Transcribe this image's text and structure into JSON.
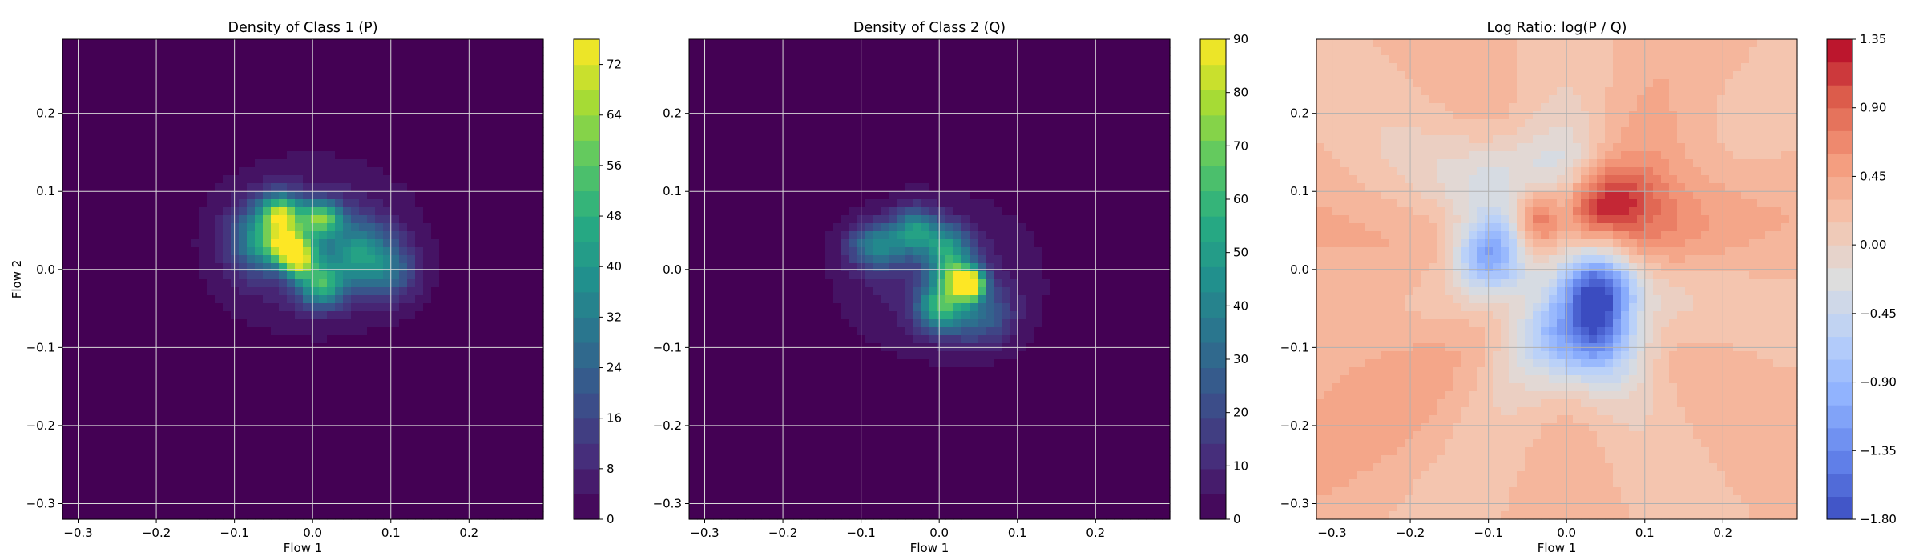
{
  "chart_data": [
    {
      "type": "heatmap",
      "title": "Density of Class 1 (P)",
      "xlabel": "Flow 1",
      "ylabel": "Flow 2",
      "xlim": [
        -0.32,
        0.295
      ],
      "ylim": [
        -0.32,
        0.295
      ],
      "xticks": [
        -0.3,
        -0.2,
        -0.1,
        0.0,
        0.1,
        0.2
      ],
      "yticks": [
        -0.3,
        -0.2,
        -0.1,
        0.0,
        0.1,
        0.2
      ],
      "grid": true,
      "colormap": "viridis",
      "clim": [
        0,
        76
      ],
      "colorbar_ticks": [
        0,
        8,
        16,
        24,
        32,
        40,
        48,
        56,
        64,
        72
      ],
      "density_peaks": [
        {
          "x": -0.04,
          "y": 0.07,
          "peak": 55,
          "sx": 0.018,
          "sy": 0.018
        },
        {
          "x": 0.01,
          "y": 0.065,
          "peak": 50,
          "sx": 0.018,
          "sy": 0.015
        },
        {
          "x": -0.03,
          "y": 0.03,
          "peak": 55,
          "sx": 0.02,
          "sy": 0.015
        },
        {
          "x": -0.02,
          "y": 0.01,
          "peak": 45,
          "sx": 0.015,
          "sy": 0.015
        },
        {
          "x": 0.01,
          "y": -0.02,
          "peak": 40,
          "sx": 0.02,
          "sy": 0.02
        },
        {
          "x": 0.06,
          "y": 0.02,
          "peak": 30,
          "sx": 0.03,
          "sy": 0.03
        },
        {
          "x": -0.07,
          "y": 0.04,
          "peak": 30,
          "sx": 0.025,
          "sy": 0.03
        },
        {
          "x": 0.1,
          "y": -0.005,
          "peak": 18,
          "sx": 0.025,
          "sy": 0.025
        },
        {
          "x": 0.0,
          "y": 0.03,
          "peak": 14,
          "sx": 0.075,
          "sy": 0.06
        }
      ]
    },
    {
      "type": "heatmap",
      "title": "Density of Class 2 (Q)",
      "xlabel": "Flow 1",
      "ylabel": "",
      "xlim": [
        -0.32,
        0.295
      ],
      "ylim": [
        -0.32,
        0.295
      ],
      "xticks": [
        -0.3,
        -0.2,
        -0.1,
        0.0,
        0.1,
        0.2
      ],
      "yticks": [
        -0.3,
        -0.2,
        -0.1,
        0.0,
        0.1,
        0.2
      ],
      "grid": true,
      "colormap": "viridis",
      "clim": [
        0,
        90
      ],
      "colorbar_ticks": [
        0,
        10,
        20,
        30,
        40,
        50,
        60,
        70,
        80,
        90
      ],
      "density_peaks": [
        {
          "x": -0.08,
          "y": 0.03,
          "peak": 38,
          "sx": 0.025,
          "sy": 0.02
        },
        {
          "x": -0.03,
          "y": 0.05,
          "peak": 40,
          "sx": 0.02,
          "sy": 0.02
        },
        {
          "x": 0.01,
          "y": 0.03,
          "peak": 35,
          "sx": 0.02,
          "sy": 0.02
        },
        {
          "x": 0.04,
          "y": -0.02,
          "peak": 85,
          "sx": 0.012,
          "sy": 0.012
        },
        {
          "x": 0.02,
          "y": -0.01,
          "peak": 50,
          "sx": 0.02,
          "sy": 0.02
        },
        {
          "x": 0.0,
          "y": -0.05,
          "peak": 45,
          "sx": 0.02,
          "sy": 0.02
        },
        {
          "x": 0.05,
          "y": -0.06,
          "peak": 25,
          "sx": 0.03,
          "sy": 0.025
        },
        {
          "x": 0.0,
          "y": -0.01,
          "peak": 12,
          "sx": 0.075,
          "sy": 0.06
        }
      ]
    },
    {
      "type": "heatmap",
      "title": "Log Ratio: log(P / Q)",
      "xlabel": "Flow 1",
      "ylabel": "",
      "xlim": [
        -0.32,
        0.295
      ],
      "ylim": [
        -0.32,
        0.295
      ],
      "xticks": [
        -0.3,
        -0.2,
        -0.1,
        0.0,
        0.1,
        0.2
      ],
      "yticks": [
        -0.3,
        -0.2,
        -0.1,
        0.0,
        0.1,
        0.2
      ],
      "grid": true,
      "colormap": "coolwarm",
      "clim": [
        -1.8,
        1.35
      ],
      "colorbar_ticks": [
        -1.8,
        -1.35,
        -0.9,
        -0.45,
        0.0,
        0.45,
        0.9,
        1.35
      ],
      "colorbar_tick_labels": [
        "−1.80",
        "−1.35",
        "−0.90",
        "−0.45",
        "0.00",
        "0.45",
        "0.90",
        "1.35"
      ],
      "background_level": 0.25,
      "ratio_blobs": [
        {
          "x": 0.05,
          "y": 0.08,
          "amp": 1.1,
          "sx": 0.05,
          "sy": 0.035
        },
        {
          "x": -0.04,
          "y": 0.06,
          "amp": 0.7,
          "sx": 0.02,
          "sy": 0.03
        },
        {
          "x": 0.12,
          "y": 0.1,
          "amp": 0.4,
          "sx": 0.06,
          "sy": 0.06
        },
        {
          "x": -0.1,
          "y": 0.02,
          "amp": -1.3,
          "sx": 0.03,
          "sy": 0.03
        },
        {
          "x": 0.04,
          "y": -0.03,
          "amp": -1.6,
          "sx": 0.03,
          "sy": 0.035
        },
        {
          "x": 0.02,
          "y": -0.09,
          "amp": -1.2,
          "sx": 0.05,
          "sy": 0.04
        },
        {
          "x": -0.05,
          "y": 0.12,
          "amp": -0.5,
          "sx": 0.07,
          "sy": 0.04
        },
        {
          "x": 0.0,
          "y": 0.0,
          "amp": -0.35,
          "sx": 0.09,
          "sy": 0.12
        },
        {
          "x": -0.25,
          "y": -0.1,
          "amp": 0.15,
          "sx": 0.1,
          "sy": 0.1
        },
        {
          "x": -0.22,
          "y": 0.12,
          "amp": -0.1,
          "sx": 0.05,
          "sy": 0.05
        }
      ]
    }
  ]
}
